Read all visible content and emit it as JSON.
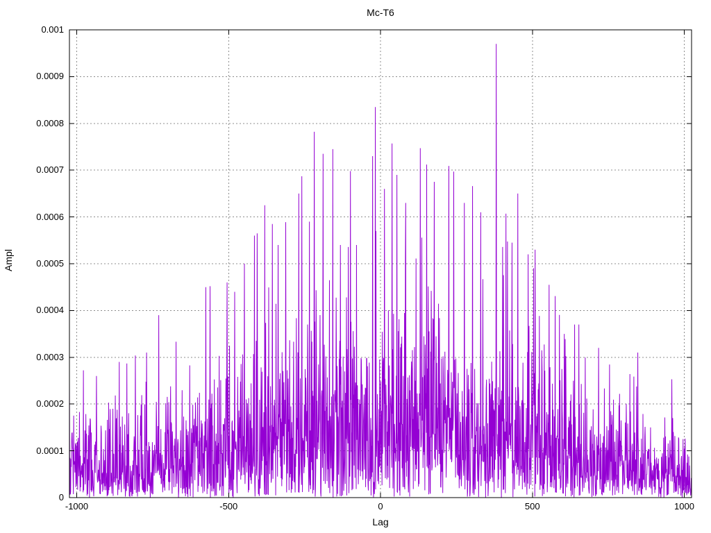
{
  "colors": {
    "background": "#ffffff",
    "border": "#000000",
    "grid": "#8c8c8c",
    "line": "#9400d3",
    "text": "#000000"
  },
  "chart_data": {
    "type": "line",
    "description": "Cross-correlation amplitude vs lag; dense noisy impulse-like trace",
    "title": "Mc-T6",
    "xlabel": "Lag",
    "ylabel": "Ampl",
    "xlim": [
      -1024,
      1024
    ],
    "ylim": [
      0,
      0.001
    ],
    "xticks": [
      -1000,
      -500,
      0,
      500,
      1000
    ],
    "xtick_labels": [
      "-1000",
      "-500",
      "0",
      "500",
      "1000"
    ],
    "yticks": [
      0,
      0.0001,
      0.0002,
      0.0003,
      0.0004,
      0.0005,
      0.0006,
      0.0007,
      0.0008,
      0.0009,
      0.001
    ],
    "ytick_labels": [
      "0",
      "0.0001",
      "0.0002",
      "0.0003",
      "0.0004",
      "0.0005",
      "0.0006",
      "0.0007",
      "0.0008",
      "0.0009",
      "0.001"
    ],
    "grid": true,
    "legend": "none",
    "line_color": "#9400d3",
    "n_points": 2048,
    "max_peak": {
      "lag": 381,
      "ampl": 0.00097
    },
    "generator": {
      "seed": 7,
      "sigma_envelope": [
        [
          -1024,
          9e-05
        ],
        [
          -850,
          9e-05
        ],
        [
          -700,
          0.0001
        ],
        [
          -550,
          0.00012
        ],
        [
          -450,
          0.00014
        ],
        [
          -350,
          0.00016
        ],
        [
          -250,
          0.00017
        ],
        [
          -100,
          0.00018
        ],
        [
          0,
          0.00018
        ],
        [
          150,
          0.00018
        ],
        [
          300,
          0.00017
        ],
        [
          450,
          0.00016
        ],
        [
          550,
          0.00015
        ],
        [
          650,
          0.00012
        ],
        [
          750,
          0.0001
        ],
        [
          850,
          8e-05
        ],
        [
          950,
          7e-05
        ],
        [
          1024,
          6e-05
        ]
      ]
    },
    "peaks": [
      [
        -935,
        0.00026
      ],
      [
        -860,
        0.00029
      ],
      [
        -770,
        0.00031
      ],
      [
        -730,
        0.00039
      ],
      [
        -575,
        0.00045
      ],
      [
        -561,
        0.000452
      ],
      [
        -505,
        0.00046
      ],
      [
        -480,
        0.00044
      ],
      [
        -448,
        0.0005
      ],
      [
        -415,
        0.00056
      ],
      [
        -406,
        0.000565
      ],
      [
        -381,
        0.000625
      ],
      [
        -356,
        0.000585
      ],
      [
        -337,
        0.00054
      ],
      [
        -269,
        0.00065
      ],
      [
        -259,
        0.000687
      ],
      [
        -234,
        0.00059
      ],
      [
        -218,
        0.000782
      ],
      [
        -189,
        0.000735
      ],
      [
        -157,
        0.000745
      ],
      [
        -132,
        0.00054
      ],
      [
        -99,
        0.000698
      ],
      [
        -79,
        0.00054
      ],
      [
        -26,
        0.00073
      ],
      [
        -17,
        0.000835
      ],
      [
        13,
        0.00066
      ],
      [
        38,
        0.000757
      ],
      [
        54,
        0.00069
      ],
      [
        83,
        0.00063
      ],
      [
        131,
        0.000747
      ],
      [
        152,
        0.000712
      ],
      [
        177,
        0.000675
      ],
      [
        225,
        0.000709
      ],
      [
        241,
        0.000697
      ],
      [
        276,
        0.00063
      ],
      [
        303,
        0.000666
      ],
      [
        330,
        0.00061
      ],
      [
        381,
        0.00097
      ],
      [
        413,
        0.000607
      ],
      [
        452,
        0.00065
      ],
      [
        486,
        0.00052
      ],
      [
        509,
        0.00053
      ],
      [
        555,
        0.000455
      ],
      [
        605,
        0.00035
      ],
      [
        639,
        0.00037
      ],
      [
        653,
        0.00037
      ],
      [
        847,
        0.00031
      ],
      [
        959,
        0.000253
      ]
    ]
  }
}
